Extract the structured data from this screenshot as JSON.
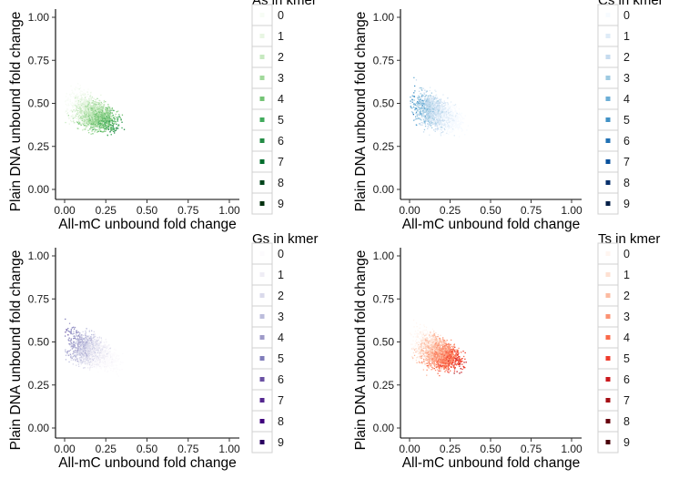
{
  "chart_data": [
    {
      "type": "scatter",
      "xlabel": "All-mC unbound fold change",
      "ylabel": "Plain DNA unbound fold change",
      "xticks": [
        "0.00",
        "0.25",
        "0.50",
        "0.75",
        "1.00"
      ],
      "yticks": [
        "0.00",
        "0.25",
        "0.50",
        "0.75",
        "1.00"
      ],
      "xlim": [
        0,
        1.0
      ],
      "ylim": [
        0,
        1.0
      ],
      "legend": {
        "title": "As in kmer",
        "position": "right",
        "entries": [
          "0",
          "1",
          "2",
          "3",
          "4",
          "5",
          "6",
          "7",
          "8",
          "9"
        ],
        "colors": [
          "#f7fcf5",
          "#e8f6e3",
          "#c7e9c0",
          "#a1d99b",
          "#74c476",
          "#41ab5d",
          "#238b45",
          "#006d2c",
          "#00441b",
          "#00300f"
        ]
      },
      "pattern": "high counts shift toward higher x and lower y"
    },
    {
      "type": "scatter",
      "xlabel": "All-mC unbound fold change",
      "ylabel": "Plain DNA unbound fold change",
      "xticks": [
        "0.00",
        "0.25",
        "0.50",
        "0.75",
        "1.00"
      ],
      "yticks": [
        "0.00",
        "0.25",
        "0.50",
        "0.75",
        "1.00"
      ],
      "xlim": [
        0,
        1.0
      ],
      "ylim": [
        0,
        1.0
      ],
      "legend": {
        "title": "Cs in kmer",
        "position": "right",
        "entries": [
          "0",
          "1",
          "2",
          "3",
          "4",
          "5",
          "6",
          "7",
          "8",
          "9"
        ],
        "colors": [
          "#f7fbff",
          "#deebf7",
          "#c6dbef",
          "#9ecae1",
          "#6baed6",
          "#4292c6",
          "#2171b5",
          "#08519c",
          "#08306b",
          "#041f47"
        ]
      },
      "pattern": "high counts concentrate toward lower x"
    },
    {
      "type": "scatter",
      "xlabel": "All-mC unbound fold change",
      "ylabel": "Plain DNA unbound fold change",
      "xticks": [
        "0.00",
        "0.25",
        "0.50",
        "0.75",
        "1.00"
      ],
      "yticks": [
        "0.00",
        "0.25",
        "0.50",
        "0.75",
        "1.00"
      ],
      "xlim": [
        0,
        1.0
      ],
      "ylim": [
        0,
        1.0
      ],
      "legend": {
        "title": "Gs in kmer",
        "position": "right",
        "entries": [
          "0",
          "1",
          "2",
          "3",
          "4",
          "5",
          "6",
          "7",
          "8",
          "9"
        ],
        "colors": [
          "#fcfbfd",
          "#efedf5",
          "#dadaeb",
          "#bcbddc",
          "#9e9ac8",
          "#807dba",
          "#6a51a3",
          "#54278f",
          "#3f007d",
          "#2a0060"
        ]
      },
      "pattern": "high counts concentrate toward lower x and higher y"
    },
    {
      "type": "scatter",
      "xlabel": "All-mC unbound fold change",
      "ylabel": "Plain DNA unbound fold change",
      "xticks": [
        "0.00",
        "0.25",
        "0.50",
        "0.75",
        "1.00"
      ],
      "yticks": [
        "0.00",
        "0.25",
        "0.50",
        "0.75",
        "1.00"
      ],
      "xlim": [
        0,
        1.0
      ],
      "ylim": [
        0,
        1.0
      ],
      "legend": {
        "title": "Ts in kmer",
        "position": "right",
        "entries": [
          "0",
          "1",
          "2",
          "3",
          "4",
          "5",
          "6",
          "7",
          "8",
          "9"
        ],
        "colors": [
          "#fff5f0",
          "#fee0d2",
          "#fcbba1",
          "#fc9272",
          "#fb6a4a",
          "#ef3b2c",
          "#cb181d",
          "#a50f15",
          "#67000d",
          "#4a0009"
        ]
      },
      "pattern": "high counts shift toward higher x and lower y"
    }
  ]
}
